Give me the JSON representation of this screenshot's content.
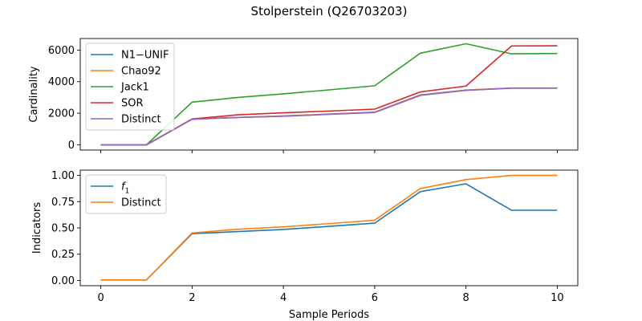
{
  "figure": {
    "title": "Stolperstein (Q26703203)"
  },
  "chart_data": [
    {
      "type": "line",
      "ylabel": "Cardinality",
      "xlabel": "",
      "x": [
        0,
        1,
        2,
        3,
        4,
        5,
        6,
        7,
        8,
        9,
        10
      ],
      "xlim": [
        -0.45,
        10.45
      ],
      "ylim": [
        -330,
        6730
      ],
      "xticks": [
        0,
        2,
        4,
        6,
        8,
        10
      ],
      "yticks": [
        0,
        2000,
        4000,
        6000
      ],
      "ytick_labels": [
        "0",
        "2000",
        "4000",
        "6000"
      ],
      "show_xtick_labels": false,
      "legend": "top-left",
      "grid": false,
      "series": [
        {
          "name": "N1−UNIF",
          "color": "#1f77b4",
          "values": [
            0,
            0,
            1620,
            1730,
            1810,
            1930,
            2050,
            3130,
            3450,
            3590,
            3590
          ]
        },
        {
          "name": "Chao92",
          "color": "#ff7f0e",
          "values": [
            0,
            0,
            1630,
            1740,
            1830,
            1950,
            2070,
            3160,
            3470,
            3600,
            3600
          ]
        },
        {
          "name": "Jack1",
          "color": "#2ca02c",
          "values": [
            0,
            0,
            2700,
            3000,
            3230,
            3480,
            3740,
            5800,
            6400,
            5760,
            5780
          ]
        },
        {
          "name": "SOR",
          "color": "#d62728",
          "values": [
            0,
            0,
            1640,
            1900,
            2030,
            2140,
            2260,
            3350,
            3720,
            6260,
            6270
          ]
        },
        {
          "name": "Distinct",
          "color": "#9467bd",
          "values": [
            0,
            0,
            1620,
            1740,
            1820,
            1940,
            2060,
            3150,
            3460,
            3590,
            3590
          ]
        }
      ]
    },
    {
      "type": "line",
      "ylabel": "Indicators",
      "xlabel": "Sample Periods",
      "x": [
        0,
        1,
        2,
        3,
        4,
        5,
        6,
        7,
        8,
        9,
        10
      ],
      "xlim": [
        -0.45,
        10.45
      ],
      "ylim": [
        -0.05,
        1.05
      ],
      "xticks": [
        0,
        2,
        4,
        6,
        8,
        10
      ],
      "yticks": [
        0.0,
        0.25,
        0.5,
        0.75,
        1.0
      ],
      "ytick_labels": [
        "0.00",
        "0.25",
        "0.50",
        "0.75",
        "1.00"
      ],
      "show_xtick_labels": true,
      "legend": "top-left",
      "grid": false,
      "series": [
        {
          "name": "f1",
          "color": "#1f77b4",
          "values": [
            0.005,
            0.005,
            0.445,
            0.465,
            0.485,
            0.515,
            0.545,
            0.845,
            0.92,
            0.668,
            0.668
          ]
        },
        {
          "name": "Distinct",
          "color": "#ff7f0e",
          "values": [
            0.005,
            0.005,
            0.452,
            0.487,
            0.51,
            0.541,
            0.573,
            0.875,
            0.96,
            1.0,
            1.0
          ]
        }
      ]
    }
  ]
}
